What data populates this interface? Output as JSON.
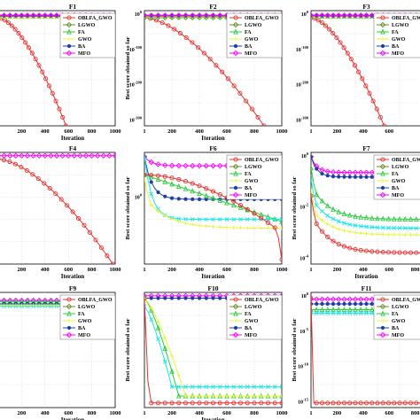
{
  "colors": {
    "OBLFA_GWO": "#e8312e",
    "LGWO": "#6b8e23",
    "FA": "#2ecc40",
    "GWO": "#e8f53a",
    "BA": "#1f3fa6",
    "MFO": "#ff00ff",
    "cyan": "#17e6e6",
    "grid": "#cfd6de"
  },
  "chart_data": [
    {
      "type": "line",
      "title": "F1",
      "xlabel": "Iteration",
      "ylabel": "",
      "x_ticks": [
        "200",
        "400",
        "600",
        "800",
        "1000"
      ],
      "y_ticks": [],
      "legend": [
        "OBLFA_GWO",
        "LGWO",
        "FA",
        "GWO",
        "BA",
        "MFO"
      ],
      "legend_placement": "top-right",
      "grid": true,
      "series": [
        {
          "name": "OBLFA_GWO",
          "curve": "steep",
          "end_iteration": 580
        },
        {
          "name": "FA",
          "curve": "flat",
          "level": 0.05
        },
        {
          "name": "GWO",
          "curve": "flat",
          "level": 0.06
        },
        {
          "name": "BA",
          "curve": "flat",
          "level": 0.045
        },
        {
          "name": "MFO",
          "curve": "flat",
          "level": 0.04
        }
      ]
    },
    {
      "type": "line",
      "title": "F2",
      "xlabel": "Iteration",
      "ylabel": "Best score obtained so far",
      "x_ticks": [
        "1",
        "200",
        "400",
        "600",
        "800",
        "1000"
      ],
      "y_ticks": [
        "10^0",
        "10^-100",
        "10^-200",
        "10^-300"
      ],
      "legend": [
        "OBLFA_GWO",
        "LGWO",
        "FA",
        "GWO",
        "BA",
        "MFO"
      ],
      "legend_placement": "top-right",
      "grid": true,
      "series": [
        {
          "name": "OBLFA_GWO",
          "curve": "steep",
          "end_iteration": 870
        },
        {
          "name": "LGWO",
          "curve": "flat",
          "level": 0.06
        },
        {
          "name": "FA",
          "curve": "flat",
          "level": 0.05
        },
        {
          "name": "GWO",
          "curve": "flat",
          "level": 0.055
        },
        {
          "name": "BA",
          "curve": "flat",
          "level": 0.045
        },
        {
          "name": "MFO",
          "curve": "flat",
          "level": 0.04
        }
      ]
    },
    {
      "type": "line",
      "title": "F3",
      "xlabel": "",
      "ylabel": "",
      "x_ticks": [
        "1",
        "200",
        "400",
        "600"
      ],
      "y_ticks": [
        "10^0",
        "10^-100",
        "10^-200",
        "10^-300"
      ],
      "legend": [
        "OBLFA_GWO",
        "LGWO",
        "FA",
        "GWO",
        "BA",
        "MFO"
      ],
      "legend_placement": "top-right",
      "grid": true,
      "series": [
        {
          "name": "OBLFA_GWO",
          "curve": "steep",
          "end_iteration": 660
        },
        {
          "name": "FA",
          "curve": "flat",
          "level": 0.05
        },
        {
          "name": "GWO",
          "curve": "flat",
          "level": 0.055
        },
        {
          "name": "BA",
          "curve": "flat",
          "level": 0.045
        },
        {
          "name": "MFO",
          "curve": "flat",
          "level": 0.04
        }
      ]
    },
    {
      "type": "line",
      "title": "F4",
      "xlabel": "Iteration",
      "ylabel": "",
      "x_ticks": [
        "200",
        "400",
        "600",
        "800",
        "1000"
      ],
      "y_ticks": [],
      "legend": [],
      "grid": true,
      "series": [
        {
          "name": "OBLFA_GWO",
          "curve": "steep",
          "end_iteration": 980
        },
        {
          "name": "MFO",
          "curve": "flat",
          "level": 0.03
        }
      ]
    },
    {
      "type": "line",
      "title": "F6",
      "xlabel": "Iteration",
      "ylabel": "Best score obtained so far",
      "x_ticks": [
        "1",
        "200",
        "400",
        "600",
        "800",
        "1000"
      ],
      "y_ticks": [
        "10^0"
      ],
      "legend": [
        "OBLFA_GWO",
        "LGWO",
        "FA",
        "GWO",
        "BA",
        "MFO"
      ],
      "legend_placement": "top-right",
      "grid": true,
      "series": [
        {
          "name": "MFO",
          "curve": "drop_flat",
          "level": 0.12
        },
        {
          "name": "BA",
          "curve": "drop_flat",
          "level": 0.42
        },
        {
          "name": "FA",
          "curve": "linear",
          "start": 0.2,
          "end": 0.62
        },
        {
          "name": "cyan",
          "curve": "drop_flat",
          "level": 0.6
        },
        {
          "name": "GWO",
          "curve": "decay",
          "start": 0.4,
          "end": 0.68
        },
        {
          "name": "OBLFA_GWO",
          "curve": "decay_plunge",
          "start": 0.2,
          "end": 0.72
        }
      ]
    },
    {
      "type": "line",
      "title": "F7",
      "xlabel": "Iteration",
      "ylabel": "Best score obtained so far",
      "x_ticks": [
        "1",
        "200",
        "400",
        "600",
        "800"
      ],
      "y_ticks": [
        "10^0",
        "10^-2",
        "10^-4"
      ],
      "legend": [
        "OBLFA_GWO",
        "LGWO",
        "FA",
        "GWO",
        "BA",
        "MFO"
      ],
      "legend_placement": "top-right",
      "grid": true,
      "series": [
        {
          "name": "MFO",
          "curve": "drop_flat",
          "level": 0.18
        },
        {
          "name": "BA",
          "curve": "drop_flat",
          "level": 0.22
        },
        {
          "name": "FA",
          "curve": "decay",
          "start": 0.3,
          "end": 0.6
        },
        {
          "name": "cyan",
          "curve": "decay",
          "start": 0.4,
          "end": 0.68
        },
        {
          "name": "GWO",
          "curve": "decay",
          "start": 0.5,
          "end": 0.74
        },
        {
          "name": "OBLFA_GWO",
          "curve": "decay",
          "start": 0.55,
          "end": 0.9
        }
      ]
    },
    {
      "type": "line",
      "title": "F9",
      "xlabel": "Iteration",
      "ylabel": "",
      "x_ticks": [
        "200",
        "400",
        "600",
        "800",
        "1000"
      ],
      "y_ticks": [],
      "legend": [
        "OBLFA_GWO",
        "LGWO",
        "FA",
        "GWO",
        "BA",
        "MFO"
      ],
      "legend_placement": "top-right",
      "grid": true,
      "series": [
        {
          "name": "MFO",
          "curve": "flat",
          "level": 0.07
        },
        {
          "name": "FA",
          "curve": "flat",
          "level": 0.08
        },
        {
          "name": "BA",
          "curve": "flat",
          "level": 0.1
        },
        {
          "name": "cyan",
          "curve": "flat",
          "level": 0.12
        },
        {
          "name": "GWO",
          "curve": "flat",
          "level": 0.11
        }
      ]
    },
    {
      "type": "line",
      "title": "F10",
      "xlabel": "Iteration",
      "ylabel": "Best score obtained so far",
      "x_ticks": [
        "1",
        "200",
        "400",
        "600",
        "800",
        "1000"
      ],
      "y_ticks": [],
      "legend": [
        "OBLFA_GWO",
        "LGWO",
        "FA",
        "GWO",
        "BA",
        "MFO"
      ],
      "legend_placement": "top-right",
      "grid": true,
      "series": [
        {
          "name": "MFO",
          "curve": "flat",
          "level": 0.03
        },
        {
          "name": "BA",
          "curve": "flat",
          "level": 0.05
        },
        {
          "name": "FA",
          "curve": "plunge",
          "start": 0.05,
          "end": 0.9,
          "at": 0.25
        },
        {
          "name": "GWO",
          "curve": "plunge",
          "start": 0.05,
          "end": 0.9,
          "at": 0.3
        },
        {
          "name": "cyan",
          "curve": "plunge",
          "start": 0.12,
          "end": 0.82,
          "at": 0.2
        },
        {
          "name": "OBLFA_GWO",
          "curve": "plunge",
          "start": 0.05,
          "end": 0.96,
          "at": 0.03
        }
      ]
    },
    {
      "type": "line",
      "title": "F11",
      "xlabel": "",
      "ylabel": "Best score obtained so far",
      "x_ticks": [
        "1",
        "200",
        "400",
        "600",
        "800"
      ],
      "y_ticks": [
        "10^0",
        "10^-5",
        "10^-10",
        "10^-15"
      ],
      "legend": [
        "OBLFA_GWO",
        "LGWO",
        "FA",
        "GWO",
        "BA",
        "MFO"
      ],
      "legend_placement": "top-right",
      "grid": true,
      "series": [
        {
          "name": "MFO",
          "curve": "flat",
          "level": 0.06
        },
        {
          "name": "BA",
          "curve": "flat",
          "level": 0.1
        },
        {
          "name": "FA",
          "curve": "flat",
          "level": 0.15
        },
        {
          "name": "cyan",
          "curve": "flat",
          "level": 0.18
        },
        {
          "name": "OBLFA_GWO",
          "curve": "plunge",
          "start": 0.05,
          "end": 0.96,
          "at": 0.02
        }
      ]
    }
  ]
}
